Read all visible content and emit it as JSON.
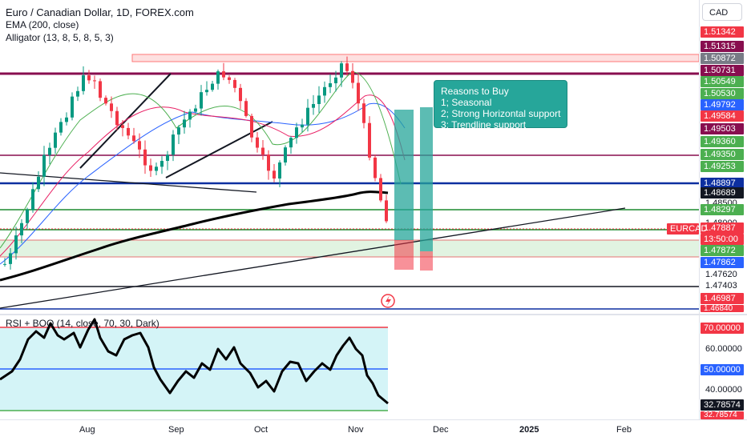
{
  "header": {
    "symbol_title": "Euro / Canadian Dollar, 1D, FOREX.com",
    "indicator_1": "EMA (200, close)",
    "indicator_2": "Alligator (13, 8, 5, 8, 5, 3)",
    "currency": "CAD"
  },
  "annotation": {
    "title": "Reasons to Buy",
    "line1": "1; Seasonal",
    "line2": "2; Strong Horizontal support",
    "line3": "3; Trendline support"
  },
  "rsi": {
    "legend": "RSI + BOO (14, close, 70, 30, Dark)",
    "levels": [
      "70.00000",
      "60.00000",
      "50.00000",
      "40.00000",
      "32.78574",
      "32.78574"
    ]
  },
  "price_scale": {
    "labels": [
      "1.51342",
      "1.51315",
      "1.50872",
      "1.50731",
      "1.50549",
      "1.50530",
      "1.49792",
      "1.49584",
      "1.49503",
      "1.49360",
      "1.49350",
      "1.49253",
      "1.48897",
      "1.48689",
      "1.48500",
      "1.48297",
      "1.48000",
      "1.47887",
      "13:50:00",
      "1.47872",
      "1.47862",
      "1.47620",
      "1.47403",
      "1.46987",
      "1.46840"
    ],
    "symbol_tag": "EURCAD"
  },
  "time_axis": {
    "labels": [
      "Aug",
      "Sep",
      "Oct",
      "Nov",
      "Dec",
      "2025",
      "Feb"
    ]
  },
  "colors": {
    "up": "#089981",
    "down": "#f23645",
    "ema": "#000000",
    "resistance": "#880e4f",
    "support_blue": "#0d2fa0",
    "support_green": "#1b8a2e",
    "teal_box": "#26a69a"
  }
}
